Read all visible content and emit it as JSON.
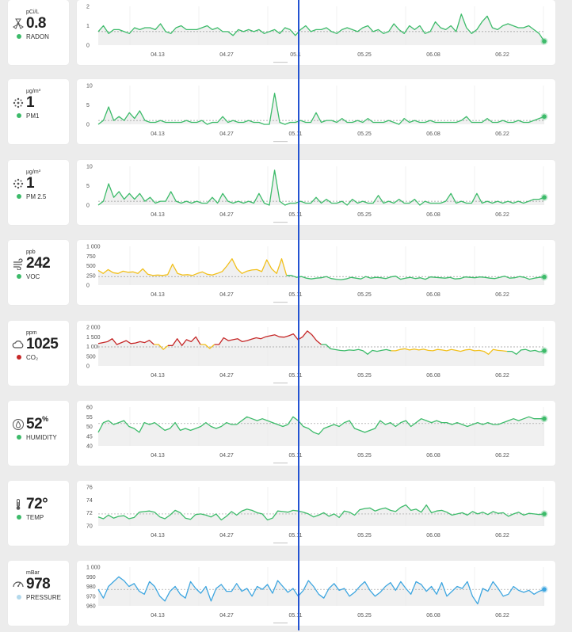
{
  "x_labels": [
    "04.13",
    "04.27",
    "05.11",
    "05.25",
    "06.08",
    "06.22"
  ],
  "colors": {
    "green": "#3dbb6a",
    "yellow": "#f2c01c",
    "red": "#c62828",
    "blue": "#3ea6e0",
    "cursor": "#2453d1"
  },
  "sensors": [
    {
      "id": "radon",
      "unit": "pCi/L",
      "value": "0.8",
      "value_suffix": "",
      "label": "RADON",
      "icon": "radon-icon",
      "dot": "#3dbb6a",
      "y_ticks": [
        "2",
        "1",
        "0"
      ],
      "y_min": 0,
      "y_max": 2,
      "ref": 0.7,
      "end_color": "#3dbb6a",
      "x_label_override": {
        "2": "05.1"
      },
      "segments": [
        {
          "color": "#3dbb6a",
          "values": [
            0.7,
            1.0,
            0.6,
            0.8,
            0.8,
            0.7,
            0.6,
            0.9,
            0.8,
            0.9,
            0.9,
            0.8,
            1.1,
            0.7,
            0.6,
            0.9,
            1.0,
            0.8,
            0.8,
            0.8,
            0.9,
            1.0,
            0.8,
            0.9,
            0.7,
            0.7,
            0.5,
            0.8,
            0.7,
            0.8,
            0.7,
            0.8,
            0.6,
            0.7,
            0.8,
            0.6,
            0.9,
            0.8,
            0.5,
            0.8,
            1.0,
            0.7,
            0.8,
            0.8,
            0.9,
            0.7,
            0.6,
            0.8,
            0.9,
            0.8,
            0.7,
            0.9,
            1.0,
            0.7,
            0.8,
            0.6,
            0.7,
            1.1,
            0.8,
            0.6,
            1.0,
            0.8,
            1.0,
            0.6,
            0.7,
            1.2,
            0.9,
            0.8,
            1.0,
            0.7,
            1.6,
            0.9,
            0.6,
            0.8,
            1.2,
            1.5,
            0.9,
            0.8,
            1.0,
            1.1,
            1.0,
            0.9,
            0.9,
            1.0,
            0.8,
            0.6,
            0.2
          ]
        }
      ]
    },
    {
      "id": "pm1",
      "unit": "µg/m³",
      "value": "1",
      "value_suffix": "",
      "label": "PM1",
      "icon": "particles-icon",
      "dot": "#3dbb6a",
      "y_ticks": [
        "10",
        "5",
        "0"
      ],
      "y_min": 0,
      "y_max": 10,
      "ref": 1.0,
      "end_color": "#3dbb6a",
      "x_label_override": {},
      "segments": [
        {
          "color": "#3dbb6a",
          "values": [
            0,
            1,
            4.5,
            1,
            2,
            1,
            3,
            1.5,
            3.5,
            1,
            0.5,
            0.5,
            1,
            0.5,
            0.5,
            0.5,
            0.5,
            1,
            0.5,
            0.5,
            1,
            0,
            0.5,
            0.5,
            2,
            0.5,
            1,
            0.5,
            0.5,
            1,
            0.5,
            0.5,
            0,
            0,
            8,
            0.5,
            0,
            0.5,
            0.5,
            1,
            0.5,
            0.5,
            3,
            0.5,
            1,
            1,
            0.5,
            1.5,
            0.5,
            0.5,
            1,
            0.5,
            1.5,
            0.5,
            0.5,
            0.5,
            1,
            0.5,
            0,
            1.5,
            0.5,
            1,
            0.5,
            0.5,
            1,
            0.5,
            0.5,
            0.5,
            0.5,
            0.5,
            1,
            2,
            0.5,
            0.5,
            0.5,
            1.5,
            0.5,
            0.5,
            1,
            0.5,
            0.5,
            1,
            0.5,
            0.5,
            1,
            1.5,
            2
          ]
        }
      ]
    },
    {
      "id": "pm25",
      "unit": "µg/m³",
      "value": "1",
      "value_suffix": "",
      "label": "PM 2.5",
      "icon": "particles-icon",
      "dot": "#3dbb6a",
      "y_ticks": [
        "10",
        "5",
        "0"
      ],
      "y_min": 0,
      "y_max": 10,
      "ref": 1.0,
      "end_color": "#3dbb6a",
      "x_label_override": {},
      "segments": [
        {
          "color": "#3dbb6a",
          "values": [
            0,
            1,
            5.5,
            2,
            3.5,
            1.5,
            3,
            1.5,
            3,
            1,
            2,
            0.5,
            1,
            1,
            3.5,
            1,
            0.5,
            1,
            0.5,
            1,
            0.5,
            0.5,
            2,
            0.5,
            3,
            1,
            0.5,
            1,
            0.5,
            1,
            0.5,
            3,
            0.5,
            0,
            9,
            1,
            0,
            0.5,
            0.5,
            1,
            0.5,
            0.5,
            2,
            0.5,
            1.5,
            0.5,
            0.5,
            1,
            0,
            1.5,
            0.5,
            1,
            0.5,
            0.5,
            2.5,
            0.5,
            1,
            0.5,
            1.5,
            0.5,
            0.5,
            1.5,
            0,
            1,
            0.5,
            0.5,
            0.5,
            1,
            3,
            0.5,
            1,
            0.5,
            0.5,
            3,
            0.5,
            1,
            0.5,
            1,
            0.5,
            1,
            0.5,
            1,
            0.5,
            1,
            1.5,
            1.5,
            2
          ]
        }
      ]
    },
    {
      "id": "voc",
      "unit": "ppb",
      "value": "242",
      "value_suffix": "",
      "label": "VOC",
      "icon": "wind-icon",
      "dot": "#3dbb6a",
      "y_ticks": [
        "1 000",
        "750",
        "500",
        "250",
        "0"
      ],
      "y_min": 0,
      "y_max": 1000,
      "ref": 220,
      "end_color": "#3dbb6a",
      "x_label_override": {},
      "segments": [
        {
          "color": "#f2c01c",
          "values": [
            380,
            300,
            400,
            320,
            300,
            360,
            330,
            340,
            300,
            420,
            280,
            250,
            260,
            250,
            270,
            540,
            300,
            260,
            270,
            250,
            300,
            340,
            280,
            260,
            300,
            350,
            500,
            680,
            420,
            300,
            360,
            390,
            400,
            350,
            650,
            420,
            300,
            680,
            250
          ]
        },
        {
          "color": "#3dbb6a",
          "values": [
            250,
            200,
            220,
            180,
            160,
            180,
            190,
            220,
            170,
            150,
            140,
            160,
            200,
            180,
            160,
            220,
            180,
            200,
            190,
            170,
            210,
            230,
            150,
            180,
            200,
            170,
            190,
            150,
            210,
            200,
            190,
            180,
            200,
            160,
            170,
            210,
            200,
            190,
            210,
            200,
            180,
            170,
            200,
            230,
            180,
            190,
            220,
            200,
            150,
            180,
            200,
            210
          ]
        }
      ]
    },
    {
      "id": "co2",
      "unit": "ppm",
      "value": "1025",
      "value_suffix": "",
      "label": "CO₂",
      "icon": "cloud-icon",
      "dot": "#c62828",
      "y_ticks": [
        "2 000",
        "1 500",
        "1 000",
        "500",
        "0"
      ],
      "y_min": 0,
      "y_max": 2000,
      "ref": 980,
      "end_color": "#3dbb6a",
      "x_label_override": {},
      "segments": [
        {
          "color": "#c62828",
          "values": [
            1150,
            1200,
            1250,
            1400,
            1100,
            1200,
            1300,
            1150,
            1180,
            1250,
            1200,
            1320,
            1100
          ]
        },
        {
          "color": "#f2c01c",
          "values": [
            1100,
            850,
            1050
          ]
        },
        {
          "color": "#c62828",
          "values": [
            1050,
            1400,
            1050,
            1350,
            1250,
            1500,
            1100
          ]
        },
        {
          "color": "#f2c01c",
          "values": [
            1100,
            900,
            1100
          ]
        },
        {
          "color": "#c62828",
          "values": [
            1100,
            1450,
            1300,
            1350,
            1400,
            1250,
            1300,
            1380,
            1450,
            1400,
            1500,
            1550,
            1600,
            1500,
            1480,
            1550,
            1650,
            1350,
            1500,
            1800,
            1600,
            1300,
            1100
          ]
        },
        {
          "color": "#3dbb6a",
          "values": [
            1100,
            880,
            840,
            800,
            780,
            820,
            800,
            850,
            780,
            600,
            800,
            750,
            800,
            840,
            780
          ]
        },
        {
          "color": "#f2c01c",
          "values": [
            780,
            850,
            880,
            820,
            870,
            820,
            860,
            800,
            780,
            850,
            820,
            780,
            850,
            800,
            750,
            820,
            850,
            780,
            800,
            750,
            600,
            850,
            800,
            780,
            750
          ]
        },
        {
          "color": "#3dbb6a",
          "values": [
            750,
            600,
            820,
            850,
            760,
            800,
            720,
            780
          ]
        }
      ]
    },
    {
      "id": "humidity",
      "unit": "",
      "value": "52",
      "value_suffix": "%",
      "label": "HUMIDITY",
      "icon": "humidity-icon",
      "dot": "#3dbb6a",
      "y_ticks": [
        "60",
        "55",
        "50",
        "45",
        "40"
      ],
      "y_min": 40,
      "y_max": 60,
      "ref": 51.5,
      "end_color": "#3dbb6a",
      "x_label_override": {},
      "segments": [
        {
          "color": "#3dbb6a",
          "values": [
            47,
            52,
            53,
            51,
            52,
            53,
            50,
            49,
            47,
            52,
            51,
            52,
            50,
            48,
            49,
            52,
            48,
            49,
            48,
            49,
            50,
            52,
            50,
            49,
            50,
            52,
            51,
            51,
            53,
            55,
            54,
            53,
            54,
            53,
            52,
            51,
            50,
            51,
            55,
            53,
            50,
            49,
            47,
            46,
            49,
            50,
            51,
            50,
            52,
            53,
            49,
            48,
            47,
            48,
            49,
            53,
            51,
            52,
            50,
            52,
            53,
            50,
            52,
            54,
            53,
            52,
            53,
            52,
            52,
            51,
            52,
            51,
            50,
            51,
            52,
            51,
            52,
            51,
            51,
            52,
            53,
            54,
            53,
            54,
            55,
            54,
            54,
            54
          ]
        }
      ]
    },
    {
      "id": "temp",
      "unit": "",
      "value": "72°",
      "value_suffix": "",
      "label": "TEMP",
      "icon": "thermometer-icon",
      "dot": "#3dbb6a",
      "y_ticks": [
        "76",
        "74",
        "72",
        "70"
      ],
      "y_min": 70,
      "y_max": 76.5,
      "ref": 72.0,
      "end_color": "#3dbb6a",
      "x_label_override": {},
      "segments": [
        {
          "color": "#3dbb6a",
          "values": [
            71.5,
            71.2,
            71.8,
            71.3,
            71.6,
            71.7,
            71.2,
            71.4,
            72.3,
            72.4,
            72.5,
            72.3,
            71.5,
            71.2,
            71.8,
            72.6,
            72.2,
            71.3,
            71.1,
            71.9,
            72.0,
            71.8,
            71.5,
            72.0,
            71.0,
            71.6,
            72.4,
            71.8,
            72.5,
            72.8,
            72.6,
            72.2,
            72.0,
            71.0,
            71.3,
            72.5,
            72.4,
            72.3,
            72.6,
            72.5,
            72.3,
            72.0,
            71.5,
            71.8,
            72.2,
            71.6,
            72.0,
            71.4,
            72.5,
            72.3,
            71.8,
            72.7,
            72.9,
            73.0,
            72.5,
            72.8,
            73.0,
            72.6,
            72.4,
            73.1,
            73.5,
            72.6,
            72.8,
            72.3,
            73.5,
            72.2,
            72.5,
            72.6,
            72.3,
            71.8,
            72.0,
            72.2,
            71.8,
            72.4,
            72.0,
            72.3,
            71.9,
            72.4,
            72.1,
            72.2,
            71.6,
            72.0,
            72.3,
            71.8,
            72.1,
            72.0,
            71.9,
            72.0
          ]
        }
      ]
    },
    {
      "id": "pressure",
      "unit": "mBar",
      "value": "978",
      "value_suffix": "",
      "label": "PRESSURE",
      "icon": "gauge-icon",
      "dot": "#b3d9ec",
      "y_ticks": [
        "1 000",
        "990",
        "980",
        "970",
        "960"
      ],
      "y_min": 960,
      "y_max": 1000,
      "ref": 977,
      "end_color": "#3ea6e0",
      "x_label_override": {},
      "segments": [
        {
          "color": "#3ea6e0",
          "values": [
            977,
            968,
            980,
            985,
            990,
            986,
            980,
            983,
            975,
            972,
            985,
            980,
            970,
            965,
            975,
            980,
            972,
            968,
            985,
            978,
            973,
            980,
            965,
            978,
            982,
            975,
            975,
            983,
            975,
            978,
            970,
            980,
            977,
            982,
            973,
            986,
            980,
            974,
            978,
            970,
            976,
            986,
            980,
            972,
            968,
            978,
            983,
            976,
            978,
            970,
            974,
            980,
            985,
            976,
            970,
            974,
            980,
            984,
            976,
            985,
            978,
            972,
            985,
            982,
            975,
            980,
            972,
            984,
            970,
            975,
            980,
            978,
            985,
            970,
            962,
            978,
            975,
            985,
            978,
            970,
            972,
            980,
            976,
            974,
            976,
            972,
            975,
            977
          ]
        }
      ]
    }
  ]
}
